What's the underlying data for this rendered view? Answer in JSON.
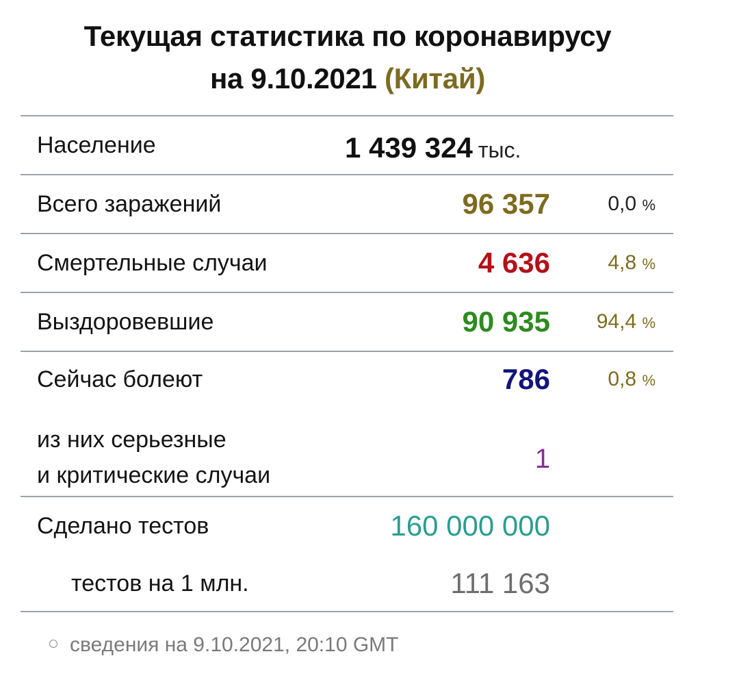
{
  "header": {
    "title_line1": "Текущая статистика по коронавирусу",
    "title_line2_prefix": "на 9.10.2021",
    "title_country": "(Китай)",
    "country_color": "#7d6b1f"
  },
  "stats": {
    "population": {
      "label": "Население",
      "value": "1 439 324",
      "unit": "тыс."
    },
    "total_cases": {
      "label": "Всего заражений",
      "value": "96 357",
      "percent": "0,0",
      "percent_sign": "%",
      "value_color": "#7d6b1f",
      "percent_color": "#222222"
    },
    "deaths": {
      "label": "Смертельные случаи",
      "value": "4 636",
      "percent": "4,8",
      "percent_sign": "%",
      "value_color": "#b3111b",
      "percent_color": "#7d6b1f"
    },
    "recovered": {
      "label": "Выздоровевшие",
      "value": "90 935",
      "percent": "94,4",
      "percent_sign": "%",
      "value_color": "#2e8b1f",
      "percent_color": "#7d6b1f"
    },
    "active": {
      "label": "Сейчас болеют",
      "value": "786",
      "percent": "0,8",
      "percent_sign": "%",
      "value_color": "#14147a",
      "percent_color": "#7d6b1f"
    },
    "serious": {
      "label_line1": "из них серьезные",
      "label_line2": "и критические случаи",
      "value": "1",
      "value_color": "#8b2a9b"
    },
    "tests": {
      "label": "Сделано тестов",
      "value": "160 000 000",
      "value_color": "#2a9d8f"
    },
    "tests_per_million": {
      "label": "тестов на 1 млн.",
      "value": "111 163",
      "value_color": "#6e6e6e"
    }
  },
  "footnote": {
    "bullet_icon": "circle-bullet-icon",
    "text": "сведения на 9.10.2021, 20:10 GMT"
  }
}
